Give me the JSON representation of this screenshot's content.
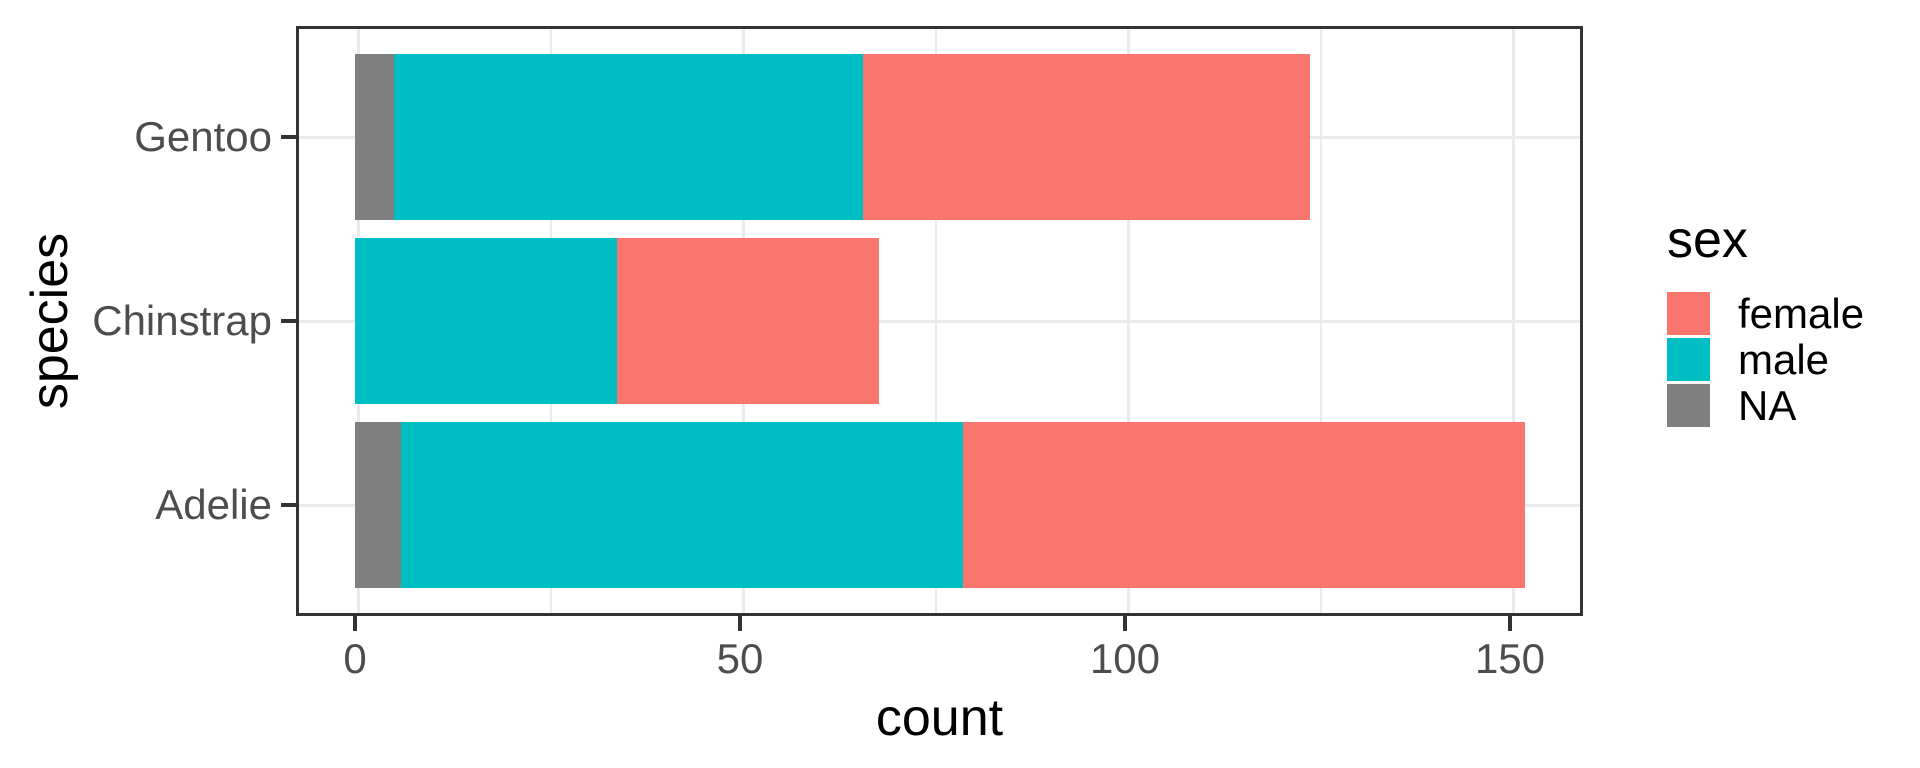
{
  "chart_data": {
    "type": "bar",
    "orientation": "horizontal",
    "stacked": true,
    "title": "",
    "xlabel": "count",
    "ylabel": "species",
    "categories": [
      "Gentoo",
      "Chinstrap",
      "Adelie"
    ],
    "series": [
      {
        "name": "NA",
        "color": "#7F7F7F",
        "values": [
          5,
          0,
          6
        ]
      },
      {
        "name": "male",
        "color": "#00BFC4",
        "values": [
          61,
          34,
          73
        ]
      },
      {
        "name": "female",
        "color": "#F8766D",
        "values": [
          58,
          34,
          73
        ]
      }
    ],
    "stack_totals": [
      124,
      68,
      152
    ],
    "x_ticks": [
      0,
      50,
      100,
      150
    ],
    "x_minor_gridlines": [
      25,
      75,
      125
    ],
    "xlim": [
      -7.6,
      159.6
    ],
    "grid": true,
    "panel_border_color": "#333333",
    "gridline_color": "#EBEBEB",
    "axis_text_color": "#4D4D4D",
    "axis_title_color": "#000000",
    "legend": {
      "title": "sex",
      "position": "right",
      "entries": [
        {
          "label": "female",
          "color": "#F8766D"
        },
        {
          "label": "male",
          "color": "#00BFC4"
        },
        {
          "label": "NA",
          "color": "#7F7F7F"
        }
      ]
    }
  }
}
